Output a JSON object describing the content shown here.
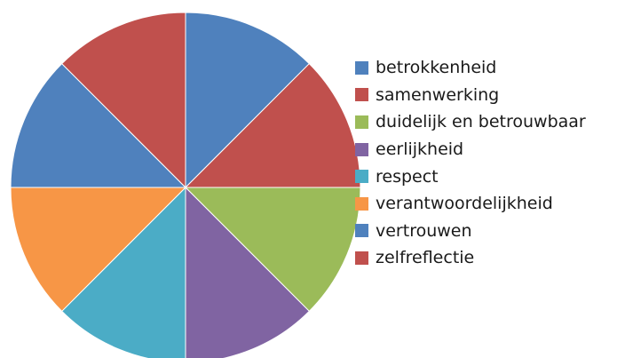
{
  "chart_data": {
    "type": "pie",
    "title": "",
    "start_angle_deg": 0,
    "direction": "clockwise",
    "legend_position": "right",
    "slices": [
      {
        "label": "betrokkenheid",
        "value": 12.5,
        "color": "#4f81bd"
      },
      {
        "label": "samenwerking",
        "value": 12.5,
        "color": "#c0504d"
      },
      {
        "label": "duidelijk en betrouwbaar",
        "value": 12.5,
        "color": "#9bbb59"
      },
      {
        "label": "eerlijkheid",
        "value": 12.5,
        "color": "#8064a2"
      },
      {
        "label": "respect",
        "value": 12.5,
        "color": "#4bacc6"
      },
      {
        "label": "verantwoordelijkheid",
        "value": 12.5,
        "color": "#f79646"
      },
      {
        "label": "vertrouwen",
        "value": 12.5,
        "color": "#4f81bd"
      },
      {
        "label": "zelfreflectie",
        "value": 12.5,
        "color": "#c0504d"
      }
    ]
  }
}
